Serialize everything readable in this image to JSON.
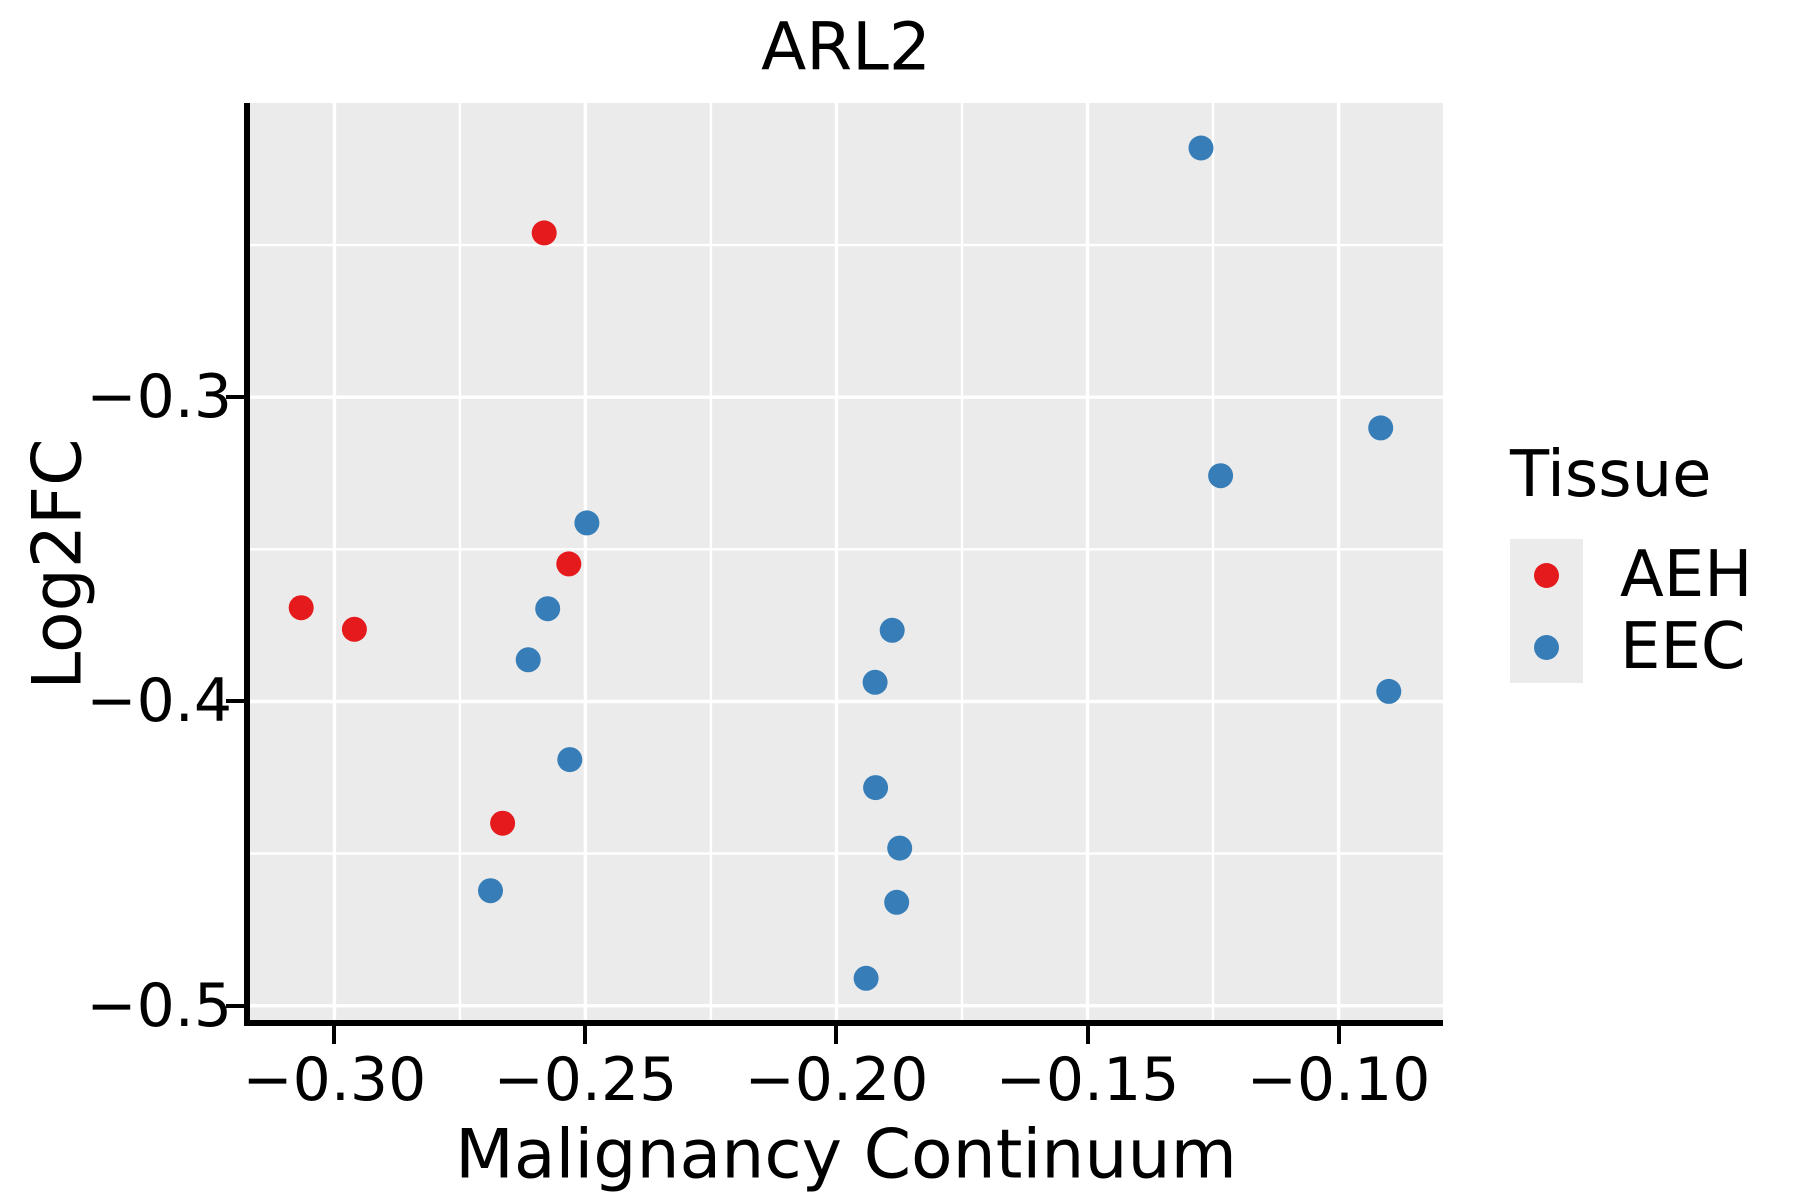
{
  "title": "ARL2",
  "colors": {
    "panel_bg": "#ebebeb",
    "gridline": "#ffffff",
    "axis_line": "#000000",
    "text": "#000000",
    "aeh_red": "#e41a1c",
    "eec_blue": "#377eb8"
  },
  "legend": {
    "title": "Tissue",
    "items": [
      {
        "label": "AEH",
        "color": "#e41a1c"
      },
      {
        "label": "EEC",
        "color": "#377eb8"
      }
    ]
  },
  "chart_data": {
    "type": "scatter",
    "title": "ARL2",
    "xlabel": "Malignancy Continuum",
    "ylabel": "Log2FC",
    "x_domain": [
      -0.3168,
      -0.0792
    ],
    "y_domain": [
      -0.2033,
      -0.5047
    ],
    "x_ticks": {
      "values": [
        -0.3,
        -0.25,
        -0.2,
        -0.15,
        -0.1
      ],
      "labels": [
        "−0.30",
        "−0.25",
        "−0.20",
        "−0.15",
        "−0.10"
      ]
    },
    "y_ticks": {
      "values": [
        -0.3,
        -0.4,
        -0.5
      ],
      "labels": [
        "−0.3",
        "−0.4",
        "−0.5"
      ]
    },
    "x_minor_gridlines": [
      -0.275,
      -0.225,
      -0.175,
      -0.125
    ],
    "y_minor_gridlines": [
      -0.25,
      -0.35,
      -0.45
    ],
    "grid": true,
    "legend_position": "right",
    "marker_radius_px": 12.5,
    "series": [
      {
        "name": "AEH",
        "color": "#e41a1c",
        "points": [
          [
            -0.2582,
            -0.246
          ],
          [
            -0.3066,
            -0.3692
          ],
          [
            -0.296,
            -0.3763
          ],
          [
            -0.2533,
            -0.3548
          ],
          [
            -0.2665,
            -0.44
          ]
        ]
      },
      {
        "name": "EEC",
        "color": "#377eb8",
        "points": [
          [
            -0.1274,
            -0.2181
          ],
          [
            -0.2497,
            -0.3413
          ],
          [
            -0.2575,
            -0.3695
          ],
          [
            -0.2614,
            -0.3863
          ],
          [
            -0.2531,
            -0.4191
          ],
          [
            -0.2689,
            -0.4622
          ],
          [
            -0.1889,
            -0.3766
          ],
          [
            -0.1923,
            -0.3937
          ],
          [
            -0.1922,
            -0.4283
          ],
          [
            -0.1874,
            -0.4482
          ],
          [
            -0.188,
            -0.466
          ],
          [
            -0.1941,
            -0.491
          ],
          [
            -0.0916,
            -0.3101
          ],
          [
            -0.1235,
            -0.3258
          ],
          [
            -0.09,
            -0.3967
          ]
        ]
      }
    ]
  }
}
